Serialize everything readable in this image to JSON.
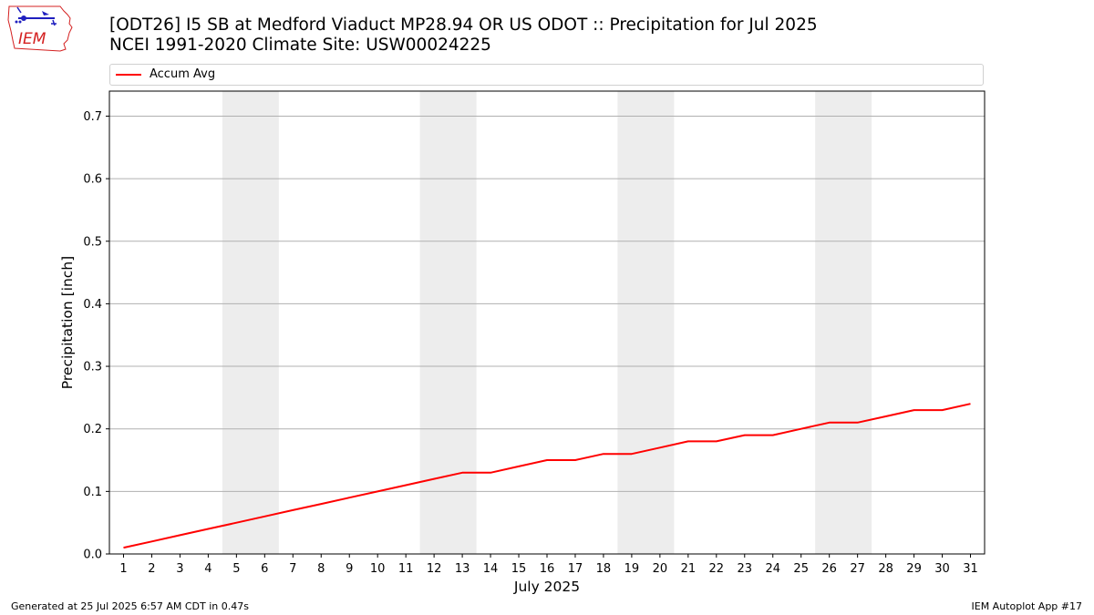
{
  "header": {
    "title_line1": "[ODT26] I5 SB at Medford Viaduct MP28.94 OR US ODOT :: Precipitation for Jul 2025",
    "title_line2": "NCEI 1991-2020 Climate Site: USW00024225",
    "logo_text": "IEM"
  },
  "footer": {
    "left": "Generated at 25 Jul 2025 6:57 AM CDT in 0.47s",
    "right": "IEM Autoplot App #17"
  },
  "colors": {
    "series": "#ff0000",
    "weekend_shade": "#ededed",
    "grid": "#b0b0b0",
    "logo_blue": "#1f1fbf",
    "logo_red": "#d42020"
  },
  "chart_data": {
    "type": "line",
    "title": "[ODT26] I5 SB at Medford Viaduct MP28.94 OR US ODOT :: Precipitation for Jul 2025",
    "subtitle": "NCEI 1991-2020 Climate Site: USW00024225",
    "xlabel": "July 2025",
    "ylabel": "Precipitation [inch]",
    "x": [
      1,
      2,
      3,
      4,
      5,
      6,
      7,
      8,
      9,
      10,
      11,
      12,
      13,
      14,
      15,
      16,
      17,
      18,
      19,
      20,
      21,
      22,
      23,
      24,
      25,
      26,
      27,
      28,
      29,
      30,
      31
    ],
    "xlim": [
      0.5,
      31.5
    ],
    "ylim": [
      0,
      0.74
    ],
    "yticks": [
      0.0,
      0.1,
      0.2,
      0.3,
      0.4,
      0.5,
      0.6,
      0.7
    ],
    "ytick_labels": [
      "0.0",
      "0.1",
      "0.2",
      "0.3",
      "0.4",
      "0.5",
      "0.6",
      "0.7"
    ],
    "grid": "horizontal",
    "legend_position": "top, above plot",
    "shaded_day_ranges": [
      [
        5,
        6
      ],
      [
        12,
        13
      ],
      [
        19,
        20
      ],
      [
        26,
        27
      ]
    ],
    "series": [
      {
        "name": "Accum Avg",
        "color": "#ff0000",
        "values": [
          0.01,
          0.02,
          0.03,
          0.04,
          0.05,
          0.06,
          0.07,
          0.08,
          0.09,
          0.1,
          0.11,
          0.12,
          0.13,
          0.13,
          0.14,
          0.15,
          0.15,
          0.16,
          0.16,
          0.17,
          0.18,
          0.18,
          0.19,
          0.19,
          0.2,
          0.21,
          0.21,
          0.22,
          0.23,
          0.23,
          0.24
        ]
      }
    ]
  }
}
